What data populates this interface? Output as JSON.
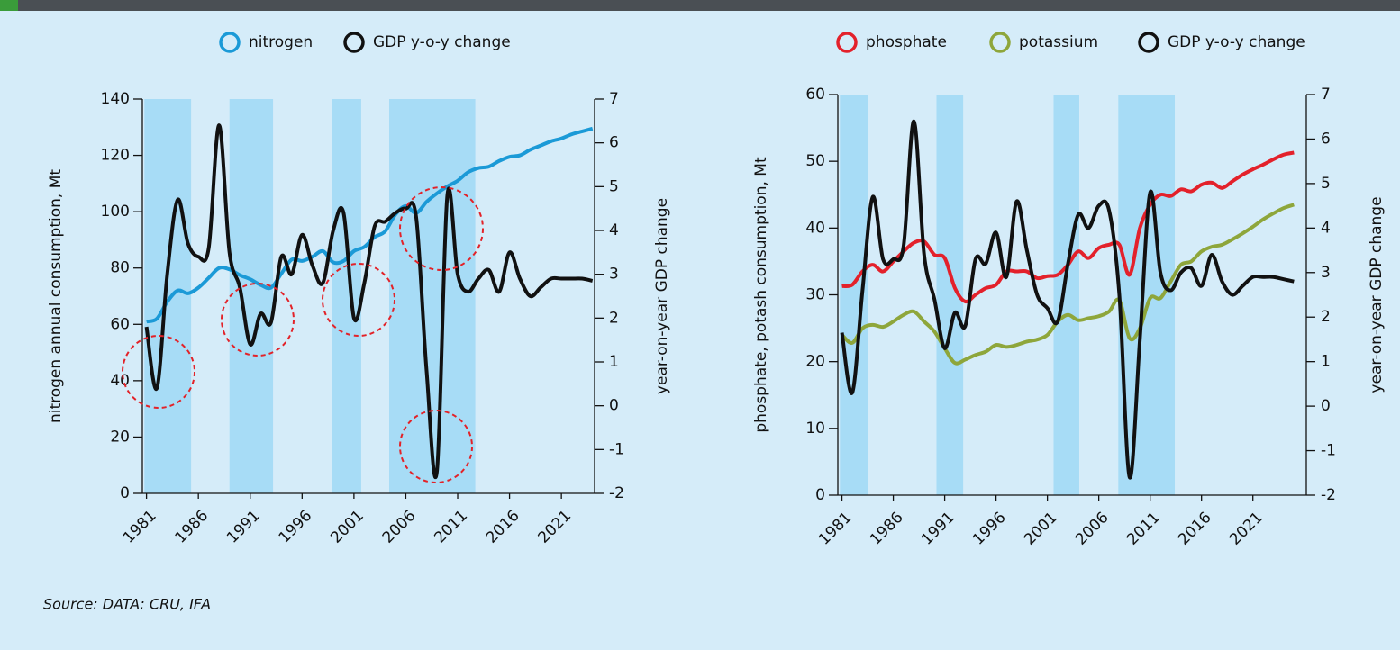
{
  "chart_data": [
    {
      "type": "line",
      "x": [
        1981,
        1982,
        1983,
        1984,
        1985,
        1986,
        1987,
        1988,
        1989,
        1990,
        1991,
        1992,
        1993,
        1994,
        1995,
        1996,
        1997,
        1998,
        1999,
        2000,
        2001,
        2002,
        2003,
        2004,
        2005,
        2006,
        2007,
        2008,
        2009,
        2010,
        2011,
        2012,
        2013,
        2014,
        2015,
        2016,
        2017,
        2018,
        2019,
        2020,
        2021,
        2022,
        2023,
        2024
      ],
      "series": [
        {
          "name": "nitrogen",
          "color": "#1b9ad7",
          "values": [
            61,
            62,
            68,
            72,
            71,
            73,
            76.5,
            80,
            79.5,
            77.5,
            76,
            74,
            73,
            78,
            83,
            82.5,
            84,
            86,
            82,
            82.5,
            86,
            87.5,
            91,
            93,
            99,
            102,
            99.5,
            103.5,
            106.5,
            109,
            111,
            114,
            115.5,
            116,
            118,
            119.5,
            120,
            122,
            123.5,
            125,
            126,
            127.5,
            128.5,
            129.5
          ]
        },
        {
          "name": "GDP y-o-y change",
          "color": "#111111",
          "axis": "y2",
          "values": [
            1.8,
            0.4,
            3.0,
            4.7,
            3.7,
            3.4,
            3.6,
            6.4,
            3.5,
            2.7,
            1.4,
            2.1,
            1.9,
            3.4,
            3.0,
            3.9,
            3.2,
            2.8,
            4.0,
            4.4,
            2.0,
            2.8,
            4.1,
            4.2,
            4.4,
            4.5,
            4.3,
            0.8,
            -1.5,
            4.8,
            3.0,
            2.6,
            2.9,
            3.1,
            2.6,
            3.5,
            2.9,
            2.5,
            2.7,
            2.9,
            2.9,
            2.9,
            2.9,
            2.85
          ]
        }
      ],
      "shaded_periods": [
        [
          1980.8,
          1985.3
        ],
        [
          1989.0,
          1993.2
        ],
        [
          1998.9,
          2001.7
        ],
        [
          2004.4,
          2012.7
        ]
      ],
      "xlim": [
        1980.6,
        2024.2
      ],
      "xticks": [
        1981,
        1986,
        1991,
        1996,
        2001,
        2006,
        2011,
        2016,
        2021
      ],
      "ylim": [
        0,
        140
      ],
      "yticks": [
        0,
        20,
        40,
        60,
        80,
        100,
        120,
        140
      ],
      "y2lim": [
        -2,
        7
      ],
      "y2ticks": [
        -2,
        -1,
        0,
        1,
        2,
        3,
        4,
        5,
        6,
        7
      ],
      "ylabel": "nitrogen annual consumption, Mt",
      "y2label": "year-on-year GDP change",
      "legend": "top"
    },
    {
      "type": "line",
      "x": [
        1981,
        1982,
        1983,
        1984,
        1985,
        1986,
        1987,
        1988,
        1989,
        1990,
        1991,
        1992,
        1993,
        1994,
        1995,
        1996,
        1997,
        1998,
        1999,
        2000,
        2001,
        2002,
        2003,
        2004,
        2005,
        2006,
        2007,
        2008,
        2009,
        2010,
        2011,
        2012,
        2013,
        2014,
        2015,
        2016,
        2017,
        2018,
        2019,
        2020,
        2021,
        2022,
        2023,
        2024,
        2025
      ],
      "series": [
        {
          "name": "phosphate",
          "color": "#e3212b",
          "values": [
            31.3,
            31.5,
            33.5,
            34.5,
            33.5,
            35,
            36.5,
            37.8,
            38,
            36,
            35.5,
            31,
            29,
            30,
            31,
            31.5,
            33.5,
            33.5,
            33.5,
            32.5,
            32.8,
            33,
            34.5,
            36.5,
            35.5,
            37,
            37.5,
            37.5,
            33,
            40,
            43.5,
            45,
            44.8,
            45.8,
            45.5,
            46.5,
            46.8,
            46,
            47,
            48,
            48.8,
            49.5,
            50.3,
            51,
            51.3
          ]
        },
        {
          "name": "potassium",
          "color": "#8ea63b",
          "values": [
            24,
            22.8,
            25,
            25.5,
            25.2,
            26,
            27,
            27.5,
            26,
            24.5,
            22,
            19.8,
            20.3,
            21,
            21.5,
            22.5,
            22.2,
            22.5,
            23,
            23.3,
            24,
            26,
            27,
            26.2,
            26.5,
            26.8,
            27.5,
            29.2,
            23.5,
            25,
            29.5,
            29.5,
            32,
            34.5,
            35,
            36.5,
            37.2,
            37.5,
            38.3,
            39.2,
            40.2,
            41.3,
            42.2,
            43,
            43.5
          ]
        },
        {
          "name": "GDP y-o-y change",
          "color": "#111111",
          "axis": "y2",
          "values": [
            1.65,
            0.3,
            2.6,
            4.7,
            3.3,
            3.3,
            3.6,
            6.4,
            3.4,
            2.4,
            1.3,
            2.1,
            1.8,
            3.3,
            3.2,
            3.9,
            2.9,
            4.6,
            3.5,
            2.5,
            2.2,
            1.9,
            3.2,
            4.3,
            4.0,
            4.5,
            4.4,
            2.5,
            -1.6,
            1.5,
            4.8,
            3.0,
            2.6,
            3.0,
            3.1,
            2.7,
            3.4,
            2.8,
            2.5,
            2.7,
            2.9,
            2.9,
            2.9,
            2.85,
            2.8
          ]
        }
      ],
      "shaded_periods": [
        [
          1980.8,
          1983.5
        ],
        [
          1990.2,
          1992.8
        ],
        [
          2001.6,
          2004.1
        ],
        [
          2007.9,
          2013.4
        ]
      ],
      "xlim": [
        1980.6,
        2026.2
      ],
      "xticks": [
        1981,
        1986,
        1991,
        1996,
        2001,
        2006,
        2011,
        2016,
        2021
      ],
      "ylim": [
        0,
        60
      ],
      "yticks": [
        0,
        10,
        20,
        30,
        40,
        50,
        60
      ],
      "y2lim": [
        -2,
        7
      ],
      "y2ticks": [
        -2,
        -1,
        0,
        1,
        2,
        3,
        4,
        5,
        6,
        7
      ],
      "ylabel": "phosphate, potash consumption, Mt",
      "y2label": "year-on-year GDP change",
      "legend": "top"
    }
  ],
  "source": "Source: DATA: CRU, IFA"
}
